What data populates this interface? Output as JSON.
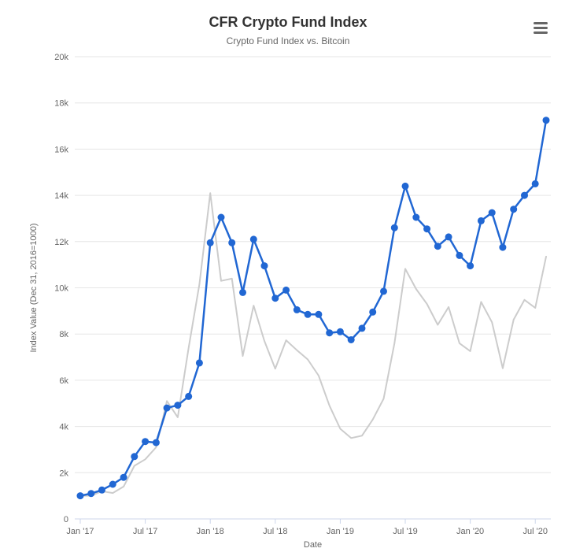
{
  "header": {
    "title": "CFR Crypto Fund Index",
    "subtitle": "Crypto Fund Index vs. Bitcoin"
  },
  "menu": {
    "tooltip": "Chart context menu"
  },
  "chart_data": {
    "type": "line",
    "title": "CFR Crypto Fund Index",
    "subtitle": "Crypto Fund Index vs. Bitcoin",
    "xlabel": "Date",
    "ylabel": "Index Value (Dec 31, 2016=1000)",
    "ylim": [
      0,
      20000
    ],
    "y_tick_values": [
      0,
      2000,
      4000,
      6000,
      8000,
      10000,
      12000,
      14000,
      16000,
      18000,
      20000
    ],
    "y_tick_labels": [
      "0",
      "2k",
      "4k",
      "6k",
      "8k",
      "10k",
      "12k",
      "14k",
      "16k",
      "18k",
      "20k"
    ],
    "x_tick_labels": [
      "Jan '17",
      "Jul '17",
      "Jan '18",
      "Jul '18",
      "Jan '19",
      "Jul '19",
      "Jan '20",
      "Jul '20"
    ],
    "x_tick_indices": [
      0,
      6,
      12,
      18,
      24,
      30,
      36,
      42
    ],
    "grid": "horizontal",
    "legend": "none",
    "categories": [
      "Jan '17",
      "Feb '17",
      "Mar '17",
      "Apr '17",
      "May '17",
      "Jun '17",
      "Jul '17",
      "Aug '17",
      "Sep '17",
      "Oct '17",
      "Nov '17",
      "Dec '17",
      "Jan '18",
      "Feb '18",
      "Mar '18",
      "Apr '18",
      "May '18",
      "Jun '18",
      "Jul '18",
      "Aug '18",
      "Sep '18",
      "Oct '18",
      "Nov '18",
      "Dec '18",
      "Jan '19",
      "Feb '19",
      "Mar '19",
      "Apr '19",
      "May '19",
      "Jun '19",
      "Jul '19",
      "Aug '19",
      "Sep '19",
      "Oct '19",
      "Nov '19",
      "Dec '19",
      "Jan '20",
      "Feb '20",
      "Mar '20",
      "Apr '20",
      "May '20",
      "Jun '20",
      "Jul '20",
      "Aug '20"
    ],
    "series": [
      {
        "name": "Crypto Fund Index",
        "color": "#2167d3",
        "line_width": 2.5,
        "markers": true,
        "marker_radius": 4.5,
        "values": [
          1000,
          1100,
          1250,
          1500,
          1800,
          2700,
          3350,
          3300,
          4800,
          4920,
          5300,
          6750,
          11950,
          13050,
          11950,
          9800,
          12100,
          10950,
          9550,
          9900,
          9050,
          8850,
          8850,
          8050,
          8100,
          7750,
          8250,
          8950,
          9850,
          12600,
          14400,
          13050,
          12550,
          11800,
          12200,
          11400,
          10950,
          12900,
          13250,
          11750,
          13400,
          14000,
          14500,
          17250
        ]
      },
      {
        "name": "Bitcoin",
        "color": "#cccccc",
        "line_width": 2,
        "markers": false,
        "marker_radius": 0,
        "values": [
          1000,
          1000,
          1200,
          1120,
          1400,
          2300,
          2580,
          3100,
          5100,
          4400,
          7400,
          10150,
          14100,
          10300,
          10400,
          7050,
          9230,
          7700,
          6500,
          7730,
          7300,
          6900,
          6200,
          4900,
          3900,
          3500,
          3600,
          4300,
          5200,
          7600,
          10820,
          9950,
          9300,
          8400,
          9170,
          7600,
          7260,
          9390,
          8510,
          6520,
          8620,
          9480,
          9130,
          11350
        ]
      }
    ],
    "colors": {
      "grid_line": "#e6e6e6",
      "axis_line": "#ccd6eb",
      "tick_text": "#666666",
      "title_text": "#333333",
      "subtitle_text": "#666666"
    }
  }
}
